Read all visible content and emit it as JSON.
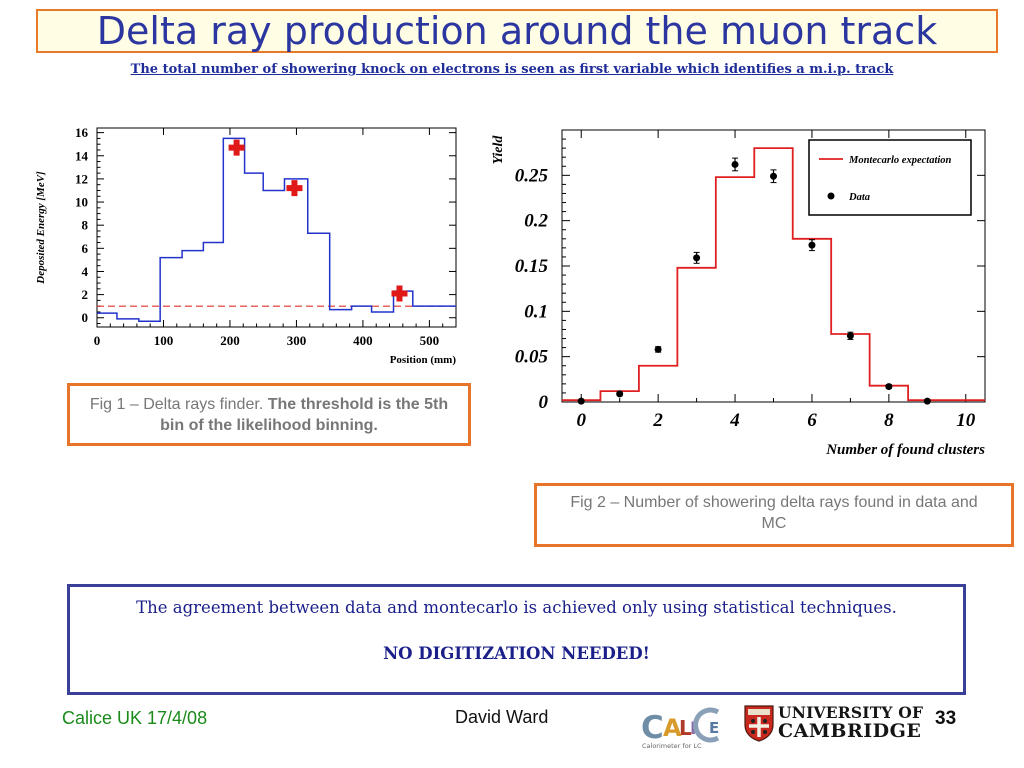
{
  "slide": {
    "title": "Delta ray production around the muon track",
    "subtitle": "The total number of  showering knock on electrons is seen as first variable which identifies a m.i.p. track",
    "caption1_normal": "Fig 1 – Delta rays finder. ",
    "caption1_bold": "The threshold is the 5th bin of the likelihood binning.",
    "caption2": "Fig 2 – Number of showering delta rays found in data and MC",
    "note_text": "The agreement between data and montecarlo is achieved only using statistical techniques.",
    "note_bold": "NO DIGITIZATION NEEDED!",
    "footer_left": "Calice UK 17/4/08",
    "footer_author": "David Ward",
    "page_number": "33",
    "calice_logo_text": "CALICE",
    "calice_logo_subtext": "Calorimeter for LC",
    "cambridge_line1": "UNIVERSITY OF",
    "cambridge_line2": "CAMBRIDGE"
  },
  "chart_data": [
    {
      "type": "line",
      "xlabel": "Position (mm)",
      "ylabel": "Deposited Energy [MeV]",
      "xlim": [
        0,
        540
      ],
      "ylim": [
        -0.8,
        16.4
      ],
      "xticks": [
        0,
        100,
        200,
        300,
        400,
        500
      ],
      "yticks": [
        0,
        2,
        4,
        6,
        8,
        10,
        12,
        14,
        16
      ],
      "colors": {
        "step": "#2233cc",
        "threshold": "#e0302a",
        "markers": "#e01818"
      },
      "step_series": {
        "edges": [
          0,
          30,
          63,
          95,
          128,
          160,
          190,
          222,
          250,
          282,
          317,
          350,
          383,
          413,
          446,
          475,
          540
        ],
        "values": [
          0.4,
          -0.1,
          -0.3,
          5.2,
          5.8,
          6.5,
          15.5,
          12.5,
          11.0,
          12.0,
          7.3,
          0.7,
          1.0,
          0.5,
          2.3,
          1.0
        ]
      },
      "threshold_y": 1.0,
      "markers": [
        {
          "x": 210,
          "y": 14.7
        },
        {
          "x": 297,
          "y": 11.2
        },
        {
          "x": 455,
          "y": 2.1
        }
      ]
    },
    {
      "type": "line",
      "xlabel": "Number of found clusters",
      "ylabel": "Yield",
      "xlim": [
        -0.5,
        10.5
      ],
      "ylim": [
        0,
        0.3
      ],
      "xticks": [
        0,
        2,
        4,
        6,
        8,
        10
      ],
      "yticks": [
        0,
        0.05,
        0.1,
        0.15,
        0.2,
        0.25
      ],
      "ytick_labels": [
        "0",
        "0.05",
        "0.1",
        "0.15",
        "0.2",
        "0.25"
      ],
      "colors": {
        "mc": "#e02020",
        "data": "#000000"
      },
      "series": [
        {
          "name": "Montecarlo expectation",
          "style": "step",
          "edges": [
            -0.5,
            0.5,
            1.5,
            2.5,
            3.5,
            4.5,
            5.5,
            6.5,
            7.5,
            8.5,
            9.5,
            10.5
          ],
          "values": [
            0.002,
            0.012,
            0.04,
            0.148,
            0.248,
            0.28,
            0.18,
            0.075,
            0.018,
            0.002,
            0.002
          ]
        },
        {
          "name": "Data",
          "style": "points",
          "x": [
            0,
            1,
            2,
            3,
            4,
            5,
            6,
            7,
            8,
            9
          ],
          "y": [
            0.001,
            0.009,
            0.058,
            0.159,
            0.262,
            0.249,
            0.173,
            0.073,
            0.017,
            0.001
          ],
          "err": [
            0,
            0.002,
            0.003,
            0.006,
            0.007,
            0.007,
            0.006,
            0.004,
            0.002,
            0
          ]
        }
      ],
      "legend_position": "top-right"
    }
  ]
}
